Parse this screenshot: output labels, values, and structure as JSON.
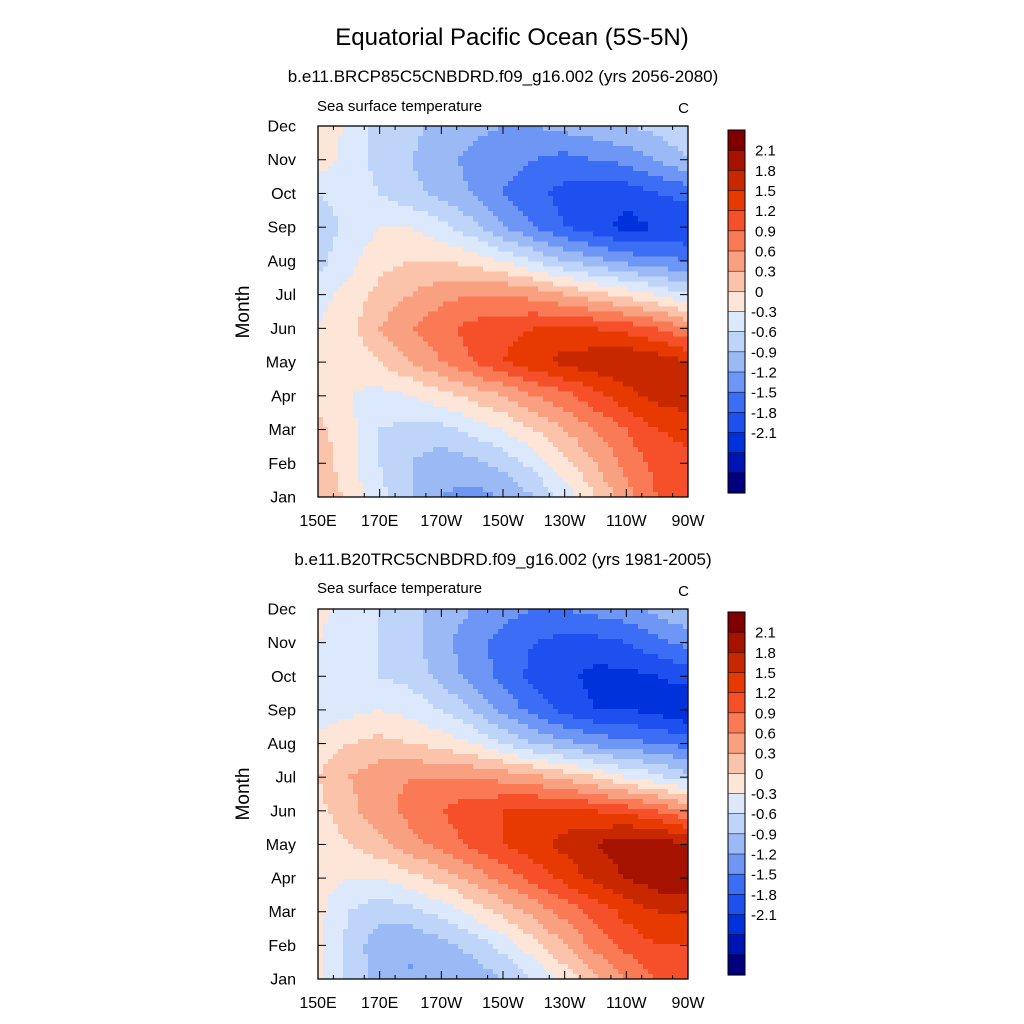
{
  "figure": {
    "title": "Equatorial Pacific Ocean (5S-5N)"
  },
  "colorbar": {
    "colors": [
      "#00007f",
      "#0014b4",
      "#0032dc",
      "#1e50f0",
      "#3c6ef5",
      "#6e96f5",
      "#9ab9f5",
      "#bed4f8",
      "#dce8fb",
      "#fde5d8",
      "#fbc3aa",
      "#f9a080",
      "#f97a55",
      "#f5502a",
      "#e63a00",
      "#c82800",
      "#a51200",
      "#7f0000"
    ],
    "tick_labels": [
      "2.1",
      "1.8",
      "1.5",
      "1.2",
      "0.9",
      "0.6",
      "0.3",
      "0",
      "-0.3",
      "-0.6",
      "-0.9",
      "-1.2",
      "-1.5",
      "-1.8",
      "-2.1"
    ],
    "levels": [
      -2.4,
      -2.1,
      -1.8,
      -1.5,
      -1.2,
      -0.9,
      -0.6,
      -0.3,
      0,
      0.3,
      0.6,
      0.9,
      1.2,
      1.5,
      1.8,
      2.1,
      2.4
    ]
  },
  "chart_data": [
    {
      "type": "heatmap",
      "title": "b.e11.BRCP85C5CNBDRD.f09_g16.002 (yrs 2056-2080)",
      "left_string": "Sea surface temperature",
      "right_string": "C",
      "ylabel": "Month",
      "xlabel": "",
      "x_ticks": [
        "150E",
        "170E",
        "170W",
        "150W",
        "130W",
        "110W",
        "90W"
      ],
      "y_ticks": [
        "Jan",
        "Feb",
        "Mar",
        "Apr",
        "May",
        "Jun",
        "Jul",
        "Aug",
        "Sep",
        "Oct",
        "Nov",
        "Dec"
      ],
      "x_values_deg_east": [
        150,
        160,
        170,
        180,
        190,
        200,
        210,
        220,
        230,
        240,
        250,
        260,
        270
      ],
      "z_rows_jan_to_dec": [
        [
          0.6,
          0.2,
          -0.2,
          -0.6,
          -0.9,
          -1.0,
          -0.9,
          -0.6,
          -0.2,
          0.3,
          0.8,
          1.2,
          1.4
        ],
        [
          0.5,
          0.1,
          -0.3,
          -0.6,
          -0.8,
          -0.7,
          -0.5,
          -0.2,
          0.2,
          0.6,
          1.0,
          1.3,
          1.4
        ],
        [
          0.4,
          0.1,
          -0.3,
          -0.4,
          -0.4,
          -0.2,
          0.0,
          0.3,
          0.6,
          0.9,
          1.2,
          1.5,
          1.6
        ],
        [
          0.2,
          0.0,
          -0.1,
          0.0,
          0.2,
          0.4,
          0.6,
          0.9,
          1.1,
          1.4,
          1.7,
          1.9,
          2.0
        ],
        [
          0.1,
          0.1,
          0.3,
          0.6,
          0.9,
          1.2,
          1.5,
          1.7,
          1.9,
          2.0,
          2.1,
          2.0,
          1.8
        ],
        [
          0.0,
          0.2,
          0.6,
          0.9,
          1.1,
          1.3,
          1.4,
          1.5,
          1.6,
          1.5,
          1.4,
          1.2,
          0.9
        ],
        [
          -0.1,
          0.1,
          0.4,
          0.6,
          0.8,
          0.9,
          0.9,
          0.8,
          0.6,
          0.4,
          0.2,
          0.0,
          -0.3
        ],
        [
          -0.4,
          -0.1,
          0.2,
          0.3,
          0.3,
          0.2,
          0.0,
          -0.3,
          -0.6,
          -0.8,
          -1.0,
          -1.1,
          -1.2
        ],
        [
          -0.5,
          -0.2,
          0.0,
          0.0,
          -0.2,
          -0.5,
          -0.9,
          -1.2,
          -1.5,
          -1.7,
          -1.9,
          -1.8,
          -1.8
        ],
        [
          -0.3,
          -0.2,
          -0.3,
          -0.5,
          -0.7,
          -0.9,
          -1.2,
          -1.4,
          -1.6,
          -1.7,
          -1.7,
          -1.5,
          -1.4
        ],
        [
          0.2,
          -0.1,
          -0.4,
          -0.6,
          -0.8,
          -1.0,
          -1.1,
          -1.2,
          -1.3,
          -1.2,
          -1.1,
          -0.9,
          -0.6
        ],
        [
          0.3,
          -0.1,
          -0.4,
          -0.5,
          -0.7,
          -0.8,
          -0.9,
          -0.9,
          -0.8,
          -0.7,
          -0.6,
          -0.5,
          -0.3
        ]
      ]
    },
    {
      "type": "heatmap",
      "title": "b.e11.B20TRC5CNBDRD.f09_g16.002 (yrs 1981-2005)",
      "left_string": "Sea surface temperature",
      "right_string": "C",
      "ylabel": "Month",
      "xlabel": "",
      "x_ticks": [
        "150E",
        "170E",
        "170W",
        "150W",
        "130W",
        "110W",
        "90W"
      ],
      "y_ticks": [
        "Jan",
        "Feb",
        "Mar",
        "Apr",
        "May",
        "Jun",
        "Jul",
        "Aug",
        "Sep",
        "Oct",
        "Nov",
        "Dec"
      ],
      "x_values_deg_east": [
        150,
        160,
        170,
        180,
        190,
        200,
        210,
        220,
        230,
        240,
        250,
        260,
        270
      ],
      "z_rows_jan_to_dec": [
        [
          0.1,
          -0.4,
          -0.7,
          -0.9,
          -0.9,
          -0.8,
          -0.6,
          -0.3,
          0.1,
          0.5,
          0.9,
          1.2,
          1.3
        ],
        [
          0.1,
          -0.4,
          -0.8,
          -0.9,
          -0.7,
          -0.5,
          -0.2,
          0.2,
          0.6,
          1.0,
          1.3,
          1.5,
          1.5
        ],
        [
          0.1,
          -0.3,
          -0.5,
          -0.4,
          -0.2,
          0.1,
          0.4,
          0.7,
          1.0,
          1.3,
          1.6,
          1.8,
          1.8
        ],
        [
          0.1,
          0.0,
          0.0,
          0.2,
          0.4,
          0.7,
          1.0,
          1.3,
          1.6,
          1.9,
          2.1,
          2.3,
          2.4
        ],
        [
          0.1,
          0.3,
          0.5,
          0.8,
          1.0,
          1.3,
          1.5,
          1.7,
          1.9,
          2.1,
          2.3,
          2.3,
          2.1
        ],
        [
          0.2,
          0.5,
          0.8,
          1.0,
          1.2,
          1.4,
          1.5,
          1.6,
          1.6,
          1.5,
          1.4,
          1.2,
          0.9
        ],
        [
          0.3,
          0.6,
          0.8,
          0.9,
          0.9,
          0.9,
          0.8,
          0.7,
          0.5,
          0.3,
          0.0,
          -0.2,
          -0.5
        ],
        [
          0.1,
          0.3,
          0.4,
          0.3,
          0.2,
          0.0,
          -0.3,
          -0.6,
          -0.8,
          -1.0,
          -1.1,
          -1.2,
          -1.3
        ],
        [
          -0.2,
          -0.1,
          0.0,
          -0.1,
          -0.3,
          -0.6,
          -1.0,
          -1.3,
          -1.6,
          -1.8,
          -1.8,
          -1.9,
          -2.1
        ],
        [
          -0.2,
          -0.3,
          -0.3,
          -0.4,
          -0.7,
          -1.0,
          -1.3,
          -1.6,
          -1.7,
          -1.9,
          -1.9,
          -1.8,
          -1.7
        ],
        [
          0.0,
          -0.2,
          -0.3,
          -0.5,
          -0.8,
          -1.1,
          -1.3,
          -1.5,
          -1.6,
          -1.6,
          -1.5,
          -1.3,
          -1.1
        ],
        [
          0.1,
          -0.1,
          -0.3,
          -0.5,
          -0.7,
          -0.9,
          -1.1,
          -1.2,
          -1.2,
          -1.1,
          -1.0,
          -0.8,
          -0.6
        ]
      ]
    }
  ]
}
